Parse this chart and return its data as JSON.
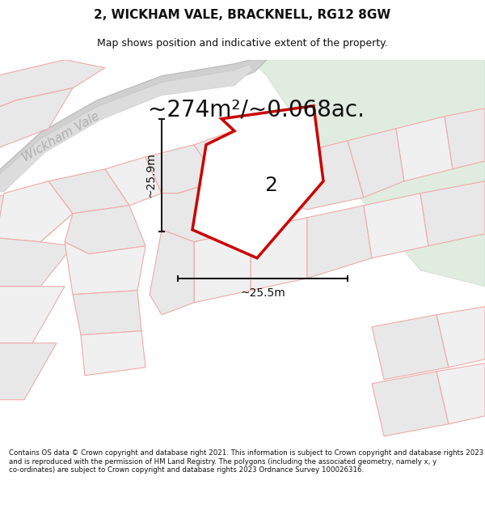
{
  "title": "2, WICKHAM VALE, BRACKNELL, RG12 8GW",
  "subtitle": "Map shows position and indicative extent of the property.",
  "area_text": "~274m²/~0.068ac.",
  "label_2": "2",
  "dim_vertical": "~25.9m",
  "dim_horizontal": "~25.5m",
  "street_label": "Wickham Vale",
  "footer": "Contains OS data © Crown copyright and database right 2021. This information is subject to Crown copyright and database rights 2023 and is reproduced with the permission of HM Land Registry. The polygons (including the associated geometry, namely x, y co-ordinates) are subject to Crown copyright and database rights 2023 Ordnance Survey 100026316.",
  "map_bg": "#ebebeb",
  "green_color": "#e0ece0",
  "road_color": "#d8d8d8",
  "parcel_fill": "#e8e8e8",
  "parcel_light": "#f0f0f0",
  "parcel_edge": "#f0aaaa",
  "parcel_edge2": "#c8c8c8",
  "property_fill": "#ffffff",
  "property_edge": "#cc0000",
  "dim_color": "#1a1a1a",
  "text_color": "#111111",
  "street_color": "#b0b0b0",
  "title_fontsize": 11,
  "subtitle_fontsize": 9,
  "area_fontsize": 20,
  "label_fontsize": 18,
  "dim_fontsize": 10,
  "street_fontsize": 11,
  "footer_fontsize": 6.2
}
